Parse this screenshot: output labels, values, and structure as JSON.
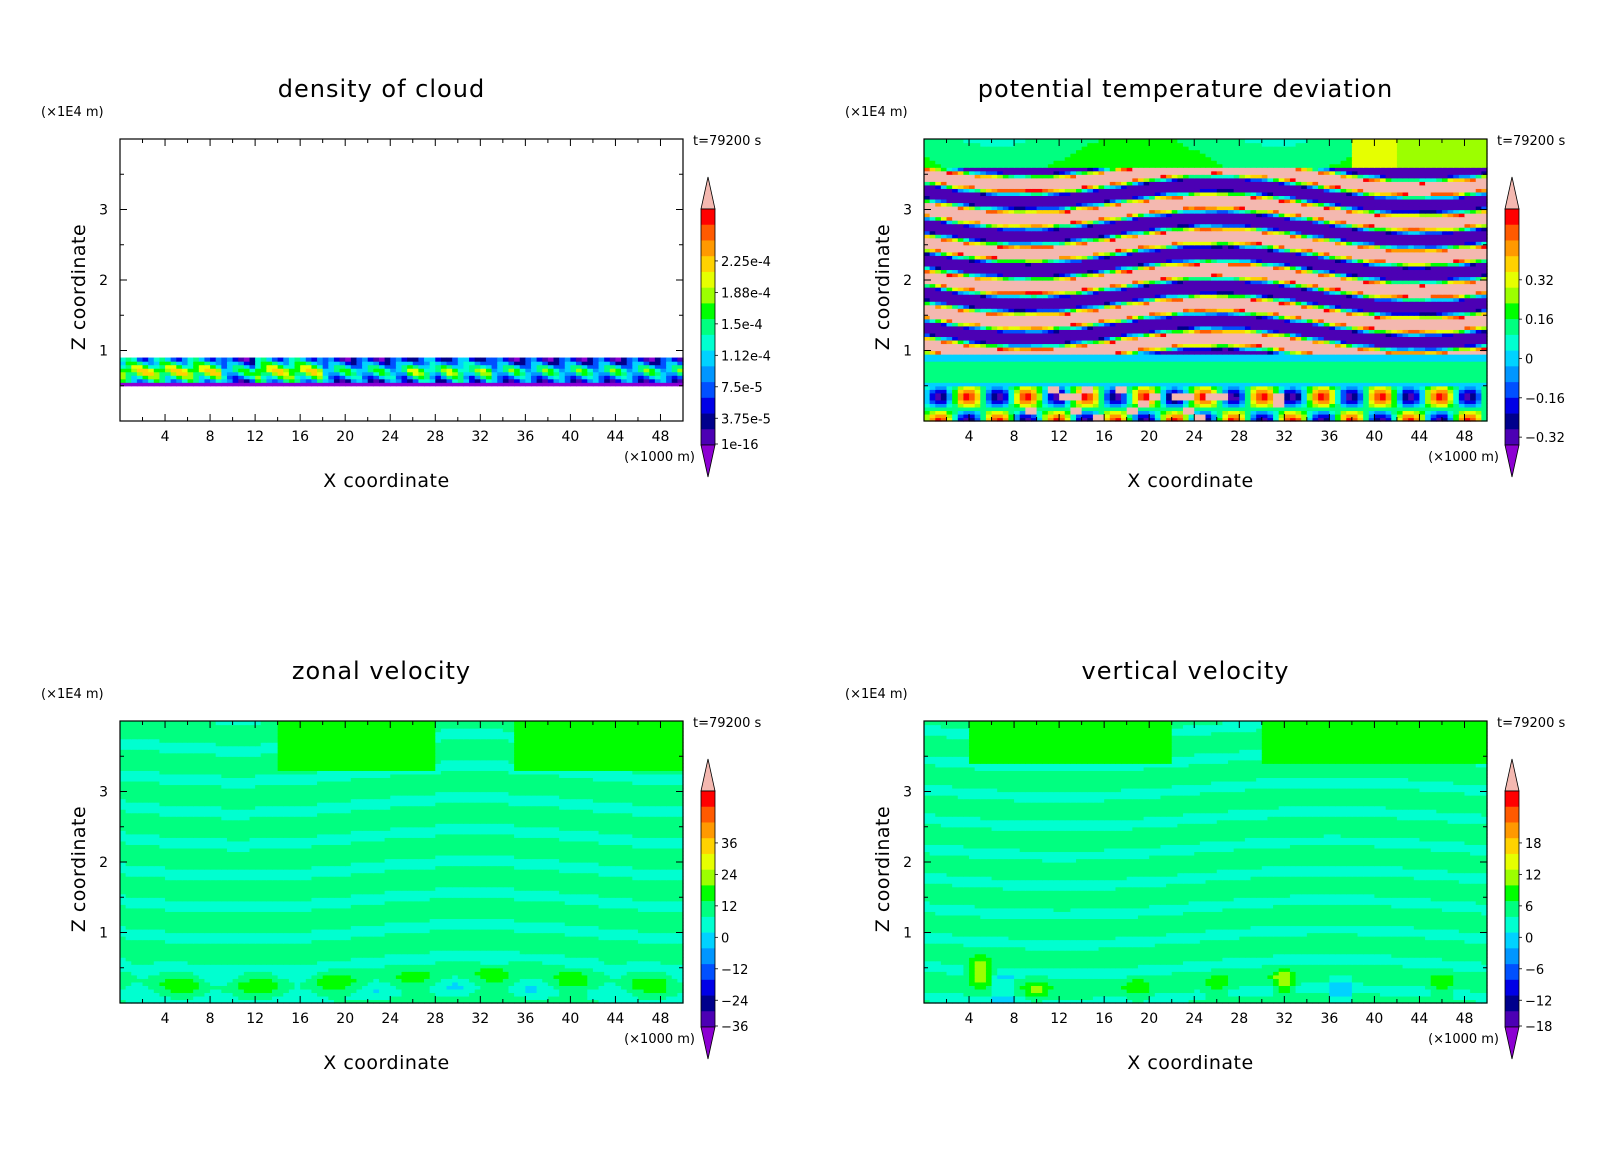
{
  "figure": {
    "time_label": "t=79200 s"
  },
  "chart_data": [
    {
      "type": "heatmap",
      "title": "density of cloud",
      "xlabel": "X coordinate",
      "ylabel": "Z coordinate",
      "x_unit": "(×1000 m)",
      "y_unit": "(×1E4 m)",
      "time": "t=79200 s",
      "xlim": [
        0,
        50
      ],
      "ylim": [
        0,
        4
      ],
      "x_ticks": [
        4,
        8,
        12,
        16,
        20,
        24,
        28,
        32,
        36,
        40,
        44,
        48
      ],
      "y_ticks": [
        1,
        2,
        3
      ],
      "colorbar": {
        "levels": [
          "2.25e-4",
          "1.88e-4",
          "1.5e-4",
          "1.12e-4",
          "7.5e-5",
          "3.75e-5",
          "1e-16"
        ],
        "ticks": [
          "2.25e-4",
          "1.88e-4",
          "1.5e-4",
          "1.12e-4",
          "7.5e-5",
          "3.75e-5",
          "1e-16"
        ],
        "colors": [
          "#f4b8b0",
          "#ff0000",
          "#ff5a00",
          "#ff9900",
          "#ffd200",
          "#e6ff00",
          "#9cff00",
          "#00ff00",
          "#00ff80",
          "#00ffd0",
          "#00d2ff",
          "#0096ff",
          "#0050ff",
          "#0000e6",
          "#00008c",
          "#4c00b4",
          "#8c00d2"
        ],
        "extend": "both"
      },
      "field": "cloud"
    },
    {
      "type": "heatmap",
      "title": "potential temperature deviation",
      "xlabel": "X coordinate",
      "ylabel": "Z coordinate",
      "x_unit": "(×1000 m)",
      "y_unit": "(×1E4 m)",
      "time": "t=79200 s",
      "xlim": [
        0,
        50
      ],
      "ylim": [
        0,
        4
      ],
      "x_ticks": [
        4,
        8,
        12,
        16,
        20,
        24,
        28,
        32,
        36,
        40,
        44,
        48
      ],
      "y_ticks": [
        1,
        2,
        3
      ],
      "colorbar": {
        "levels": [
          "0.32",
          "0.16",
          "0",
          "-0.16",
          "-0.32"
        ],
        "ticks": [
          "0.32",
          "0.16",
          "0",
          "−0.16",
          "−0.32"
        ],
        "colors": [
          "#f4b8b0",
          "#ff0000",
          "#ff5a00",
          "#ff9900",
          "#ffd200",
          "#e6ff00",
          "#9cff00",
          "#00ff00",
          "#00ff80",
          "#00ffd0",
          "#00d2ff",
          "#0096ff",
          "#0050ff",
          "#0000e6",
          "#00008c",
          "#4c00b4",
          "#8c00d2"
        ],
        "extend": "both"
      },
      "field": "theta"
    },
    {
      "type": "heatmap",
      "title": "zonal velocity",
      "xlabel": "X coordinate",
      "ylabel": "Z coordinate",
      "x_unit": "(×1000 m)",
      "y_unit": "(×1E4 m)",
      "time": "t=79200 s",
      "xlim": [
        0,
        50
      ],
      "ylim": [
        0,
        4
      ],
      "x_ticks": [
        4,
        8,
        12,
        16,
        20,
        24,
        28,
        32,
        36,
        40,
        44,
        48
      ],
      "y_ticks": [
        1,
        2,
        3
      ],
      "colorbar": {
        "levels": [
          "36",
          "24",
          "12",
          "0",
          "-12",
          "-24",
          "-36"
        ],
        "ticks": [
          "36",
          "24",
          "12",
          "0",
          "−12",
          "−24",
          "−36"
        ],
        "colors": [
          "#f4b8b0",
          "#ff0000",
          "#ff5a00",
          "#ff9900",
          "#ffd200",
          "#e6ff00",
          "#9cff00",
          "#00ff00",
          "#00ff80",
          "#00ffd0",
          "#00d2ff",
          "#0096ff",
          "#0050ff",
          "#0000e6",
          "#00008c",
          "#4c00b4",
          "#8c00d2"
        ],
        "extend": "both"
      },
      "field": "zonal"
    },
    {
      "type": "heatmap",
      "title": "vertical velocity",
      "xlabel": "X coordinate",
      "ylabel": "Z coordinate",
      "x_unit": "(×1000 m)",
      "y_unit": "(×1E4 m)",
      "time": "t=79200 s",
      "xlim": [
        0,
        50
      ],
      "ylim": [
        0,
        4
      ],
      "x_ticks": [
        4,
        8,
        12,
        16,
        20,
        24,
        28,
        32,
        36,
        40,
        44,
        48
      ],
      "y_ticks": [
        1,
        2,
        3
      ],
      "colorbar": {
        "levels": [
          "18",
          "12",
          "6",
          "0",
          "-6",
          "-12",
          "-18"
        ],
        "ticks": [
          "18",
          "12",
          "6",
          "0",
          "−6",
          "−12",
          "−18"
        ],
        "colors": [
          "#f4b8b0",
          "#ff0000",
          "#ff5a00",
          "#ff9900",
          "#ffd200",
          "#e6ff00",
          "#9cff00",
          "#00ff00",
          "#00ff80",
          "#00ffd0",
          "#00d2ff",
          "#0096ff",
          "#0050ff",
          "#0000e6",
          "#00008c",
          "#4c00b4",
          "#8c00d2"
        ],
        "extend": "both"
      },
      "field": "vertical"
    }
  ]
}
